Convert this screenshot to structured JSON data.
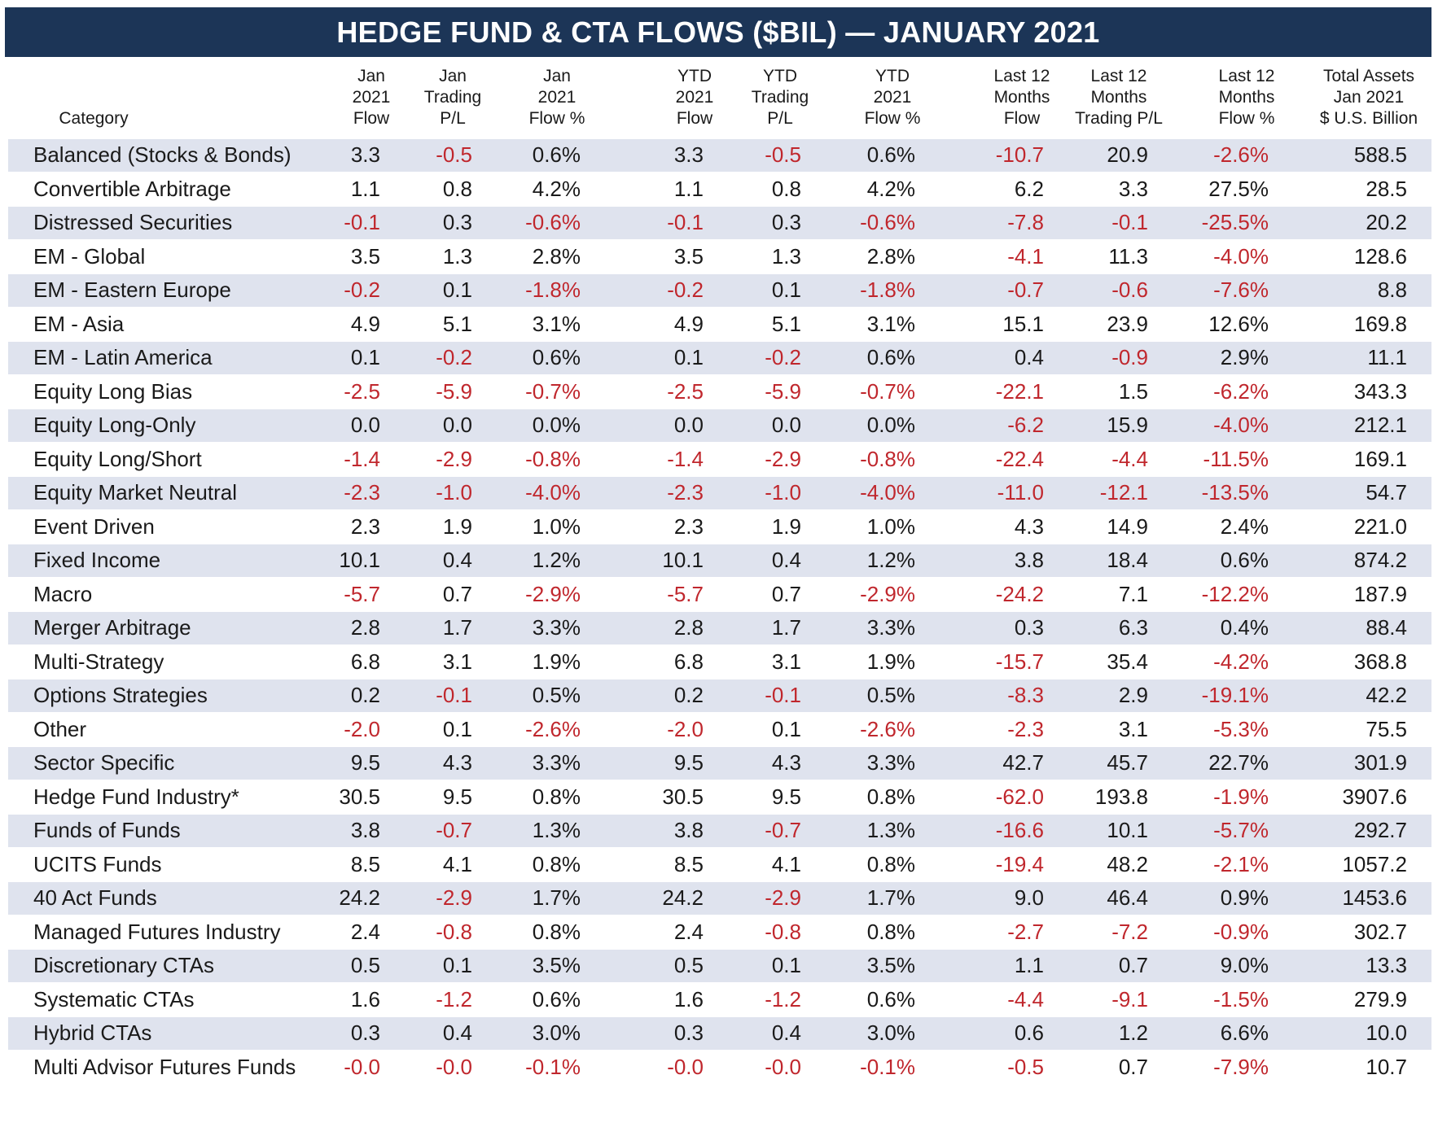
{
  "title": "HEDGE FUND & CTA FLOWS ($BIL) — JANUARY 2021",
  "negative_color": "#c0272d",
  "table": {
    "category_header": "Category",
    "headers": [
      [
        "Jan",
        "2021",
        "Flow"
      ],
      [
        "Jan",
        "Trading",
        "P/L"
      ],
      [
        "Jan",
        "2021",
        "Flow %"
      ],
      [
        "YTD",
        "2021",
        "Flow"
      ],
      [
        "YTD",
        "Trading",
        "P/L"
      ],
      [
        "YTD",
        "2021",
        "Flow %"
      ],
      [
        "Last 12",
        "Months",
        "Flow"
      ],
      [
        "Last 12",
        "Months",
        "Trading P/L"
      ],
      [
        "Last 12",
        "Months",
        "Flow %"
      ],
      [
        "Total Assets",
        "Jan 2021",
        "$ U.S. Billion"
      ]
    ],
    "rows": [
      [
        "Balanced (Stocks & Bonds)",
        "3.3",
        "-0.5",
        "0.6%",
        "3.3",
        "-0.5",
        "0.6%",
        "-10.7",
        "20.9",
        "-2.6%",
        "588.5"
      ],
      [
        "Convertible Arbitrage",
        "1.1",
        "0.8",
        "4.2%",
        "1.1",
        "0.8",
        "4.2%",
        "6.2",
        "3.3",
        "27.5%",
        "28.5"
      ],
      [
        "Distressed Securities",
        "-0.1",
        "0.3",
        "-0.6%",
        "-0.1",
        "0.3",
        "-0.6%",
        "-7.8",
        "-0.1",
        "-25.5%",
        "20.2"
      ],
      [
        "EM - Global",
        "3.5",
        "1.3",
        "2.8%",
        "3.5",
        "1.3",
        "2.8%",
        "-4.1",
        "11.3",
        "-4.0%",
        "128.6"
      ],
      [
        "EM - Eastern Europe",
        "-0.2",
        "0.1",
        "-1.8%",
        "-0.2",
        "0.1",
        "-1.8%",
        "-0.7",
        "-0.6",
        "-7.6%",
        "8.8"
      ],
      [
        "EM - Asia",
        "4.9",
        "5.1",
        "3.1%",
        "4.9",
        "5.1",
        "3.1%",
        "15.1",
        "23.9",
        "12.6%",
        "169.8"
      ],
      [
        "EM - Latin America",
        "0.1",
        "-0.2",
        "0.6%",
        "0.1",
        "-0.2",
        "0.6%",
        "0.4",
        "-0.9",
        "2.9%",
        "11.1"
      ],
      [
        "Equity Long Bias",
        "-2.5",
        "-5.9",
        "-0.7%",
        "-2.5",
        "-5.9",
        "-0.7%",
        "-22.1",
        "1.5",
        "-6.2%",
        "343.3"
      ],
      [
        "Equity Long-Only",
        "0.0",
        "0.0",
        "0.0%",
        "0.0",
        "0.0",
        "0.0%",
        "-6.2",
        "15.9",
        "-4.0%",
        "212.1"
      ],
      [
        "Equity Long/Short",
        "-1.4",
        "-2.9",
        "-0.8%",
        "-1.4",
        "-2.9",
        "-0.8%",
        "-22.4",
        "-4.4",
        "-11.5%",
        "169.1"
      ],
      [
        "Equity Market Neutral",
        "-2.3",
        "-1.0",
        "-4.0%",
        "-2.3",
        "-1.0",
        "-4.0%",
        "-11.0",
        "-12.1",
        "-13.5%",
        "54.7"
      ],
      [
        "Event Driven",
        "2.3",
        "1.9",
        "1.0%",
        "2.3",
        "1.9",
        "1.0%",
        "4.3",
        "14.9",
        "2.4%",
        "221.0"
      ],
      [
        "Fixed Income",
        "10.1",
        "0.4",
        "1.2%",
        "10.1",
        "0.4",
        "1.2%",
        "3.8",
        "18.4",
        "0.6%",
        "874.2"
      ],
      [
        "Macro",
        "-5.7",
        "0.7",
        "-2.9%",
        "-5.7",
        "0.7",
        "-2.9%",
        "-24.2",
        "7.1",
        "-12.2%",
        "187.9"
      ],
      [
        "Merger Arbitrage",
        "2.8",
        "1.7",
        "3.3%",
        "2.8",
        "1.7",
        "3.3%",
        "0.3",
        "6.3",
        "0.4%",
        "88.4"
      ],
      [
        "Multi-Strategy",
        "6.8",
        "3.1",
        "1.9%",
        "6.8",
        "3.1",
        "1.9%",
        "-15.7",
        "35.4",
        "-4.2%",
        "368.8"
      ],
      [
        "Options Strategies",
        "0.2",
        "-0.1",
        "0.5%",
        "0.2",
        "-0.1",
        "0.5%",
        "-8.3",
        "2.9",
        "-19.1%",
        "42.2"
      ],
      [
        "Other",
        "-2.0",
        "0.1",
        "-2.6%",
        "-2.0",
        "0.1",
        "-2.6%",
        "-2.3",
        "3.1",
        "-5.3%",
        "75.5"
      ],
      [
        "Sector Specific",
        "9.5",
        "4.3",
        "3.3%",
        "9.5",
        "4.3",
        "3.3%",
        "42.7",
        "45.7",
        "22.7%",
        "301.9"
      ],
      [
        "Hedge Fund Industry*",
        "30.5",
        "9.5",
        "0.8%",
        "30.5",
        "9.5",
        "0.8%",
        "-62.0",
        "193.8",
        "-1.9%",
        "3907.6"
      ],
      [
        "Funds of Funds",
        "3.8",
        "-0.7",
        "1.3%",
        "3.8",
        "-0.7",
        "1.3%",
        "-16.6",
        "10.1",
        "-5.7%",
        "292.7"
      ],
      [
        "UCITS Funds",
        "8.5",
        "4.1",
        "0.8%",
        "8.5",
        "4.1",
        "0.8%",
        "-19.4",
        "48.2",
        "-2.1%",
        "1057.2"
      ],
      [
        "40 Act Funds",
        "24.2",
        "-2.9",
        "1.7%",
        "24.2",
        "-2.9",
        "1.7%",
        "9.0",
        "46.4",
        "0.9%",
        "1453.6"
      ],
      [
        "Managed Futures Industry",
        "2.4",
        "-0.8",
        "0.8%",
        "2.4",
        "-0.8",
        "0.8%",
        "-2.7",
        "-7.2",
        "-0.9%",
        "302.7"
      ],
      [
        "Discretionary CTAs",
        "0.5",
        "0.1",
        "3.5%",
        "0.5",
        "0.1",
        "3.5%",
        "1.1",
        "0.7",
        "9.0%",
        "13.3"
      ],
      [
        "Systematic CTAs",
        "1.6",
        "-1.2",
        "0.6%",
        "1.6",
        "-1.2",
        "0.6%",
        "-4.4",
        "-9.1",
        "-1.5%",
        "279.9"
      ],
      [
        "Hybrid CTAs",
        "0.3",
        "0.4",
        "3.0%",
        "0.3",
        "0.4",
        "3.0%",
        "0.6",
        "1.2",
        "6.6%",
        "10.0"
      ],
      [
        "Multi Advisor Futures Funds",
        "-0.0",
        "-0.0",
        "-0.1%",
        "-0.0",
        "-0.0",
        "-0.1%",
        "-0.5",
        "0.7",
        "-7.9%",
        "10.7"
      ]
    ]
  }
}
